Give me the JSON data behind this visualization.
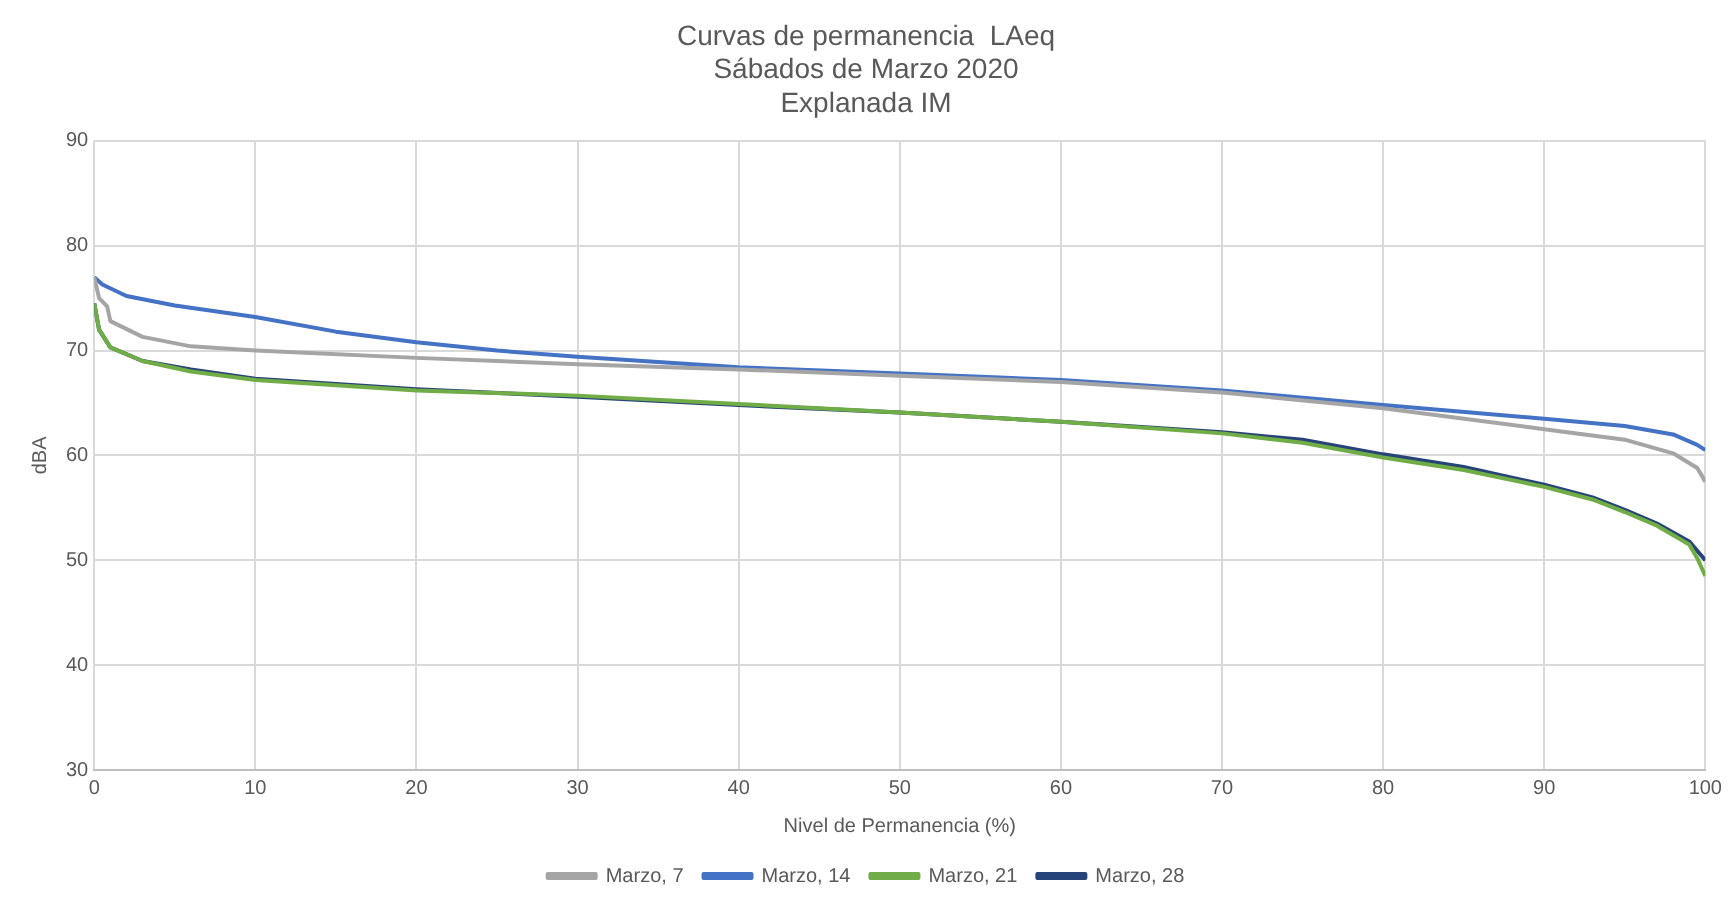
{
  "chart_data": {
    "type": "line",
    "title": "Curvas de permanencia  LAeq",
    "subtitle": "Sábados de Marzo 2020\nExplanada IM",
    "xlabel": "Nivel de Permanencia (%)",
    "ylabel": "dBA",
    "xlim": [
      0,
      100
    ],
    "xticks": [
      0,
      10,
      20,
      30,
      40,
      50,
      60,
      70,
      80,
      90,
      100
    ],
    "ylim": [
      30,
      90
    ],
    "yticks": [
      30,
      40,
      50,
      60,
      70,
      80,
      90
    ],
    "grid": true,
    "legend": "bottom",
    "marker": "none",
    "line_style": "solid",
    "series": [
      {
        "name": "Marzo, 7",
        "color": "#a5a5a5",
        "x": [
          0,
          0.3,
          0.8,
          1,
          3,
          6,
          10,
          20,
          30,
          40,
          50,
          60,
          70,
          80,
          90,
          95,
          98,
          99.5,
          100
        ],
        "values": [
          77,
          75,
          74.2,
          72.8,
          71.3,
          70.4,
          70,
          69.3,
          68.7,
          68.2,
          67.6,
          67,
          66,
          64.5,
          62.5,
          61.5,
          60.2,
          58.8,
          57.5
        ]
      },
      {
        "name": "Marzo, 14",
        "color": "#4472c4",
        "x": [
          0,
          0.5,
          2,
          5,
          10,
          15,
          20,
          25,
          30,
          40,
          50,
          60,
          70,
          80,
          90,
          95,
          98,
          99.5,
          100
        ],
        "values": [
          77,
          76.3,
          75.2,
          74.3,
          73.2,
          71.8,
          70.8,
          70,
          69.4,
          68.4,
          67.8,
          67.2,
          66.2,
          64.8,
          63.5,
          62.8,
          62,
          61,
          60.5
        ]
      },
      {
        "name": "Marzo, 21",
        "color": "#70ad47",
        "x": [
          0,
          0.3,
          1,
          3,
          6,
          10,
          20,
          30,
          40,
          50,
          60,
          70,
          75,
          80,
          85,
          90,
          93,
          95,
          97,
          99,
          99.5,
          100
        ],
        "values": [
          74.5,
          72,
          70.3,
          69,
          68,
          67.2,
          66.2,
          65.7,
          64.9,
          64.1,
          63.2,
          62.1,
          61.2,
          59.8,
          58.6,
          57,
          55.8,
          54.6,
          53.3,
          51.5,
          50.2,
          48.5
        ]
      },
      {
        "name": "Marzo, 28",
        "color": "#264478",
        "x": [
          0,
          0.3,
          1,
          3,
          6,
          10,
          20,
          30,
          40,
          50,
          60,
          70,
          75,
          80,
          85,
          90,
          93,
          95,
          97,
          99,
          100
        ],
        "values": [
          74.5,
          72,
          70.3,
          69,
          68.2,
          67.3,
          66.3,
          65.6,
          64.8,
          64.1,
          63.2,
          62.2,
          61.5,
          60.1,
          58.9,
          57.2,
          56,
          54.8,
          53.5,
          51.8,
          50
        ]
      }
    ]
  }
}
